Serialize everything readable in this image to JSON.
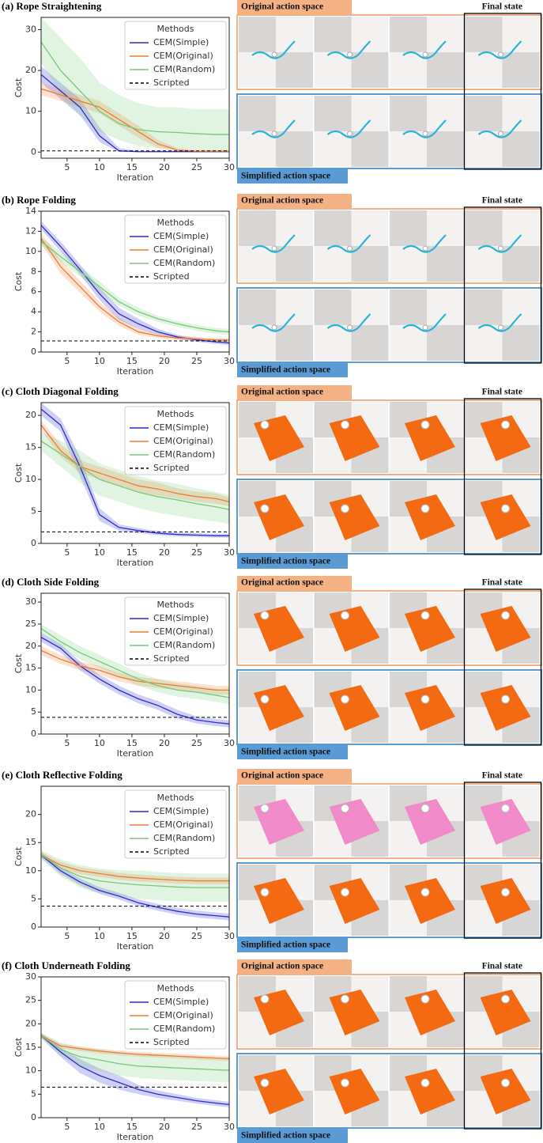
{
  "chart_data": [
    {
      "type": "line",
      "title": "(a) Rope Straightening",
      "x_label": "Iteration",
      "y_label": "Cost",
      "legend_title": "Methods",
      "legend": "upper right",
      "x": [
        1,
        4,
        7,
        10,
        13,
        16,
        19,
        22,
        25,
        28,
        30
      ],
      "xlim": [
        1,
        30
      ],
      "xticks": [
        5,
        10,
        15,
        20,
        25,
        30
      ],
      "ylim": [
        -1.5,
        33
      ],
      "yticks": [
        0,
        10,
        20,
        30
      ],
      "series": [
        {
          "name": "CEM(Simple)",
          "color": "#2b2bd0",
          "values": [
            19,
            15,
            11,
            4,
            0.3,
            0.1,
            0.1,
            0.1,
            0.1,
            0.1,
            0.1
          ],
          "lower": [
            17,
            13,
            9,
            2.5,
            0,
            0,
            0,
            0,
            0,
            0,
            0
          ],
          "upper": [
            21,
            17,
            13,
            6,
            1,
            0.3,
            0.3,
            0.3,
            0.3,
            0.3,
            0.3
          ]
        },
        {
          "name": "CEM(Original)",
          "color": "#f07b2f",
          "values": [
            15.5,
            14,
            12.5,
            11,
            8,
            5,
            2,
            0.5,
            0.2,
            0.2,
            0.2
          ],
          "lower": [
            14,
            12.5,
            11,
            9.5,
            6.5,
            3.5,
            1,
            0,
            0,
            0,
            0
          ],
          "upper": [
            17,
            15.5,
            14,
            12.5,
            9.5,
            6.5,
            3,
            1,
            0.5,
            0.5,
            0.5
          ]
        },
        {
          "name": "CEM(Random)",
          "color": "#78c878",
          "values": [
            27,
            20,
            15,
            10,
            7,
            5.5,
            5,
            4.8,
            4.5,
            4.3,
            4.3
          ],
          "lower": [
            22,
            14,
            9,
            5,
            3,
            1.5,
            1,
            0.8,
            0.5,
            0.3,
            0.3
          ],
          "upper": [
            33,
            28,
            23,
            17,
            14,
            12,
            11,
            11,
            10.5,
            10.5,
            10.5
          ]
        },
        {
          "name": "Scripted",
          "color": "#000000",
          "style": "dashed",
          "values": [
            0.3,
            0.3,
            0.3,
            0.3,
            0.3,
            0.3,
            0.3,
            0.3,
            0.3,
            0.3,
            0.3
          ]
        }
      ]
    },
    {
      "type": "line",
      "title": "(b) Rope Folding",
      "x_label": "Iteration",
      "y_label": "Cost",
      "legend_title": "Methods",
      "legend": "upper right",
      "x": [
        1,
        4,
        7,
        10,
        13,
        16,
        19,
        22,
        25,
        28,
        30
      ],
      "xlim": [
        1,
        30
      ],
      "xticks": [
        5,
        10,
        15,
        20,
        25,
        30
      ],
      "ylim": [
        0,
        14
      ],
      "yticks": [
        0,
        2,
        4,
        6,
        8,
        10,
        12,
        14
      ],
      "series": [
        {
          "name": "CEM(Simple)",
          "color": "#2b2bd0",
          "values": [
            12.6,
            10.5,
            8.2,
            5.8,
            3.8,
            2.8,
            2.0,
            1.5,
            1.2,
            1.0,
            0.9
          ],
          "lower": [
            12.2,
            10,
            7.7,
            5.2,
            3.2,
            2.3,
            1.7,
            1.3,
            1,
            0.8,
            0.7
          ],
          "upper": [
            13,
            11,
            8.7,
            6.4,
            4.4,
            3.3,
            2.3,
            1.7,
            1.4,
            1.2,
            1.1
          ]
        },
        {
          "name": "CEM(Original)",
          "color": "#f07b2f",
          "values": [
            11.3,
            8.5,
            6.5,
            4.5,
            3.0,
            2.0,
            1.6,
            1.4,
            1.3,
            1.2,
            1.2
          ],
          "lower": [
            10.8,
            7.8,
            5.9,
            4,
            2.6,
            1.7,
            1.4,
            1.2,
            1.1,
            1,
            1
          ],
          "upper": [
            11.8,
            9.2,
            7.1,
            5,
            3.4,
            2.3,
            1.8,
            1.6,
            1.5,
            1.4,
            1.4
          ]
        },
        {
          "name": "CEM(Random)",
          "color": "#78c878",
          "values": [
            11,
            9.5,
            8,
            6.5,
            5,
            4,
            3.3,
            2.8,
            2.4,
            2.1,
            2
          ],
          "lower": [
            10.6,
            9,
            7.5,
            6,
            4.6,
            3.6,
            3,
            2.5,
            2.1,
            1.8,
            1.7
          ],
          "upper": [
            11.4,
            10,
            8.5,
            7,
            5.4,
            4.4,
            3.6,
            3.1,
            2.7,
            2.4,
            2.3
          ]
        },
        {
          "name": "Scripted",
          "color": "#000000",
          "style": "dashed",
          "values": [
            1.1,
            1.1,
            1.1,
            1.1,
            1.1,
            1.1,
            1.1,
            1.1,
            1.1,
            1.1,
            1.1
          ]
        }
      ]
    },
    {
      "type": "line",
      "title": "(c) Cloth Diagonal Folding",
      "x_label": "Iteration",
      "y_label": "Cost",
      "legend_title": "Methods",
      "legend": "upper right",
      "x": [
        1,
        4,
        7,
        10,
        13,
        16,
        19,
        22,
        25,
        28,
        30
      ],
      "xlim": [
        1,
        30
      ],
      "xticks": [
        5,
        10,
        15,
        20,
        25,
        30
      ],
      "ylim": [
        0,
        22
      ],
      "yticks": [
        0,
        5,
        10,
        15,
        20
      ],
      "series": [
        {
          "name": "CEM(Simple)",
          "color": "#2b2bd0",
          "values": [
            21,
            18.5,
            12,
            4.5,
            2.5,
            2,
            1.6,
            1.4,
            1.3,
            1.2,
            1.2
          ],
          "lower": [
            20,
            17.5,
            10.5,
            3.5,
            2,
            1.6,
            1.3,
            1.1,
            1,
            0.9,
            0.9
          ],
          "upper": [
            22,
            19.5,
            13.5,
            5.5,
            3,
            2.4,
            1.9,
            1.7,
            1.6,
            1.5,
            1.5
          ]
        },
        {
          "name": "CEM(Original)",
          "color": "#f07b2f",
          "values": [
            18.5,
            14.5,
            12,
            11,
            10,
            9,
            8.5,
            7.8,
            7.3,
            7,
            6.5
          ],
          "lower": [
            17.8,
            13.5,
            11,
            10,
            9,
            8,
            7.5,
            7,
            6.5,
            6.2,
            5.8
          ],
          "upper": [
            19.2,
            15.5,
            13,
            12,
            11,
            10,
            9.5,
            8.6,
            8.1,
            7.8,
            7.2
          ]
        },
        {
          "name": "CEM(Random)",
          "color": "#78c878",
          "values": [
            16,
            14,
            12,
            10,
            9,
            8,
            7.3,
            6.8,
            6.2,
            5.7,
            5.3
          ],
          "lower": [
            14.5,
            12,
            9.5,
            7.5,
            6.5,
            5.5,
            4.8,
            4.3,
            3.8,
            3.4,
            3
          ],
          "upper": [
            17.5,
            16,
            14.5,
            12.5,
            11.5,
            10.5,
            9.8,
            9.3,
            8.6,
            8,
            7.6
          ]
        },
        {
          "name": "Scripted",
          "color": "#000000",
          "style": "dashed",
          "values": [
            1.8,
            1.8,
            1.8,
            1.8,
            1.8,
            1.8,
            1.8,
            1.8,
            1.8,
            1.8,
            1.8
          ]
        }
      ]
    },
    {
      "type": "line",
      "title": "(d) Cloth Side Folding",
      "x_label": "Iteration",
      "y_label": "Cost",
      "legend_title": "Methods",
      "legend": "upper right",
      "x": [
        1,
        4,
        7,
        10,
        13,
        16,
        19,
        22,
        25,
        28,
        30
      ],
      "xlim": [
        1,
        30
      ],
      "xticks": [
        5,
        10,
        15,
        20,
        25,
        30
      ],
      "ylim": [
        0,
        32
      ],
      "yticks": [
        0,
        5,
        10,
        15,
        20,
        25,
        30
      ],
      "series": [
        {
          "name": "CEM(Simple)",
          "color": "#2b2bd0",
          "values": [
            22,
            19.5,
            15.5,
            12.5,
            10,
            8,
            6.5,
            4.5,
            3.2,
            2.6,
            2.3
          ],
          "lower": [
            21,
            18.5,
            14.5,
            11.5,
            9,
            7,
            5.5,
            3.5,
            2.4,
            1.8,
            1.5
          ],
          "upper": [
            23,
            20.5,
            16.5,
            13.5,
            11,
            9,
            7.5,
            5.5,
            4,
            3.4,
            3.1
          ]
        },
        {
          "name": "CEM(Original)",
          "color": "#f07b2f",
          "values": [
            19,
            17,
            15.5,
            14.5,
            13,
            12,
            11.5,
            11,
            10.5,
            10,
            10
          ],
          "lower": [
            18,
            16,
            14.5,
            13.5,
            12,
            11,
            10.5,
            10,
            9.5,
            9,
            9
          ],
          "upper": [
            20,
            18,
            16.5,
            15.5,
            14,
            13,
            12.5,
            12,
            11.5,
            11,
            11
          ]
        },
        {
          "name": "CEM(Random)",
          "color": "#78c878",
          "values": [
            24,
            21,
            18.5,
            16.5,
            14.5,
            12.5,
            11,
            10,
            9.5,
            8.8,
            8.3
          ],
          "lower": [
            23,
            19.5,
            17,
            15,
            13,
            11,
            9.5,
            8.5,
            8,
            7.3,
            6.8
          ],
          "upper": [
            25,
            22.5,
            20,
            18,
            16,
            14,
            12.5,
            11.5,
            11,
            10.3,
            9.8
          ]
        },
        {
          "name": "Scripted",
          "color": "#000000",
          "style": "dashed",
          "values": [
            3.8,
            3.8,
            3.8,
            3.8,
            3.8,
            3.8,
            3.8,
            3.8,
            3.8,
            3.8,
            3.8
          ]
        }
      ]
    },
    {
      "type": "line",
      "title": "(e) Cloth Reflective Folding",
      "x_label": "Iteration",
      "y_label": "Cost",
      "legend_title": "Methods",
      "legend": "upper right",
      "x": [
        1,
        4,
        7,
        10,
        13,
        16,
        19,
        22,
        25,
        28,
        30
      ],
      "xlim": [
        1,
        30
      ],
      "xticks": [
        5,
        10,
        15,
        20,
        25,
        30
      ],
      "ylim": [
        0,
        25
      ],
      "yticks": [
        0,
        5,
        10,
        15,
        20
      ],
      "series": [
        {
          "name": "CEM(Simple)",
          "color": "#2b2bd0",
          "values": [
            12.8,
            10,
            8,
            6.5,
            5.5,
            4.3,
            3.5,
            2.8,
            2.3,
            2,
            1.8
          ],
          "lower": [
            12.3,
            9.4,
            7.4,
            5.9,
            4.9,
            3.7,
            2.9,
            2.2,
            1.7,
            1.4,
            1.2
          ],
          "upper": [
            13.3,
            10.6,
            8.6,
            7.1,
            6.1,
            4.9,
            4.1,
            3.4,
            2.9,
            2.6,
            2.4
          ]
        },
        {
          "name": "CEM(Original)",
          "color": "#f07b2f",
          "values": [
            12.8,
            11,
            10,
            9.5,
            9,
            8.7,
            8.5,
            8.3,
            8.2,
            8.2,
            8.2
          ],
          "lower": [
            12.3,
            10.4,
            9.4,
            8.9,
            8.4,
            8.1,
            7.9,
            7.7,
            7.6,
            7.6,
            7.6
          ],
          "upper": [
            13.3,
            11.6,
            10.6,
            10.1,
            9.6,
            9.3,
            9.1,
            8.9,
            8.8,
            8.8,
            8.8
          ]
        },
        {
          "name": "CEM(Random)",
          "color": "#78c878",
          "values": [
            12.8,
            10.5,
            9,
            8.2,
            7.8,
            7.5,
            7.3,
            7.1,
            7,
            7,
            7
          ],
          "lower": [
            12,
            9,
            7,
            6,
            5.5,
            5,
            4.8,
            4.6,
            4.5,
            4.5,
            4.5
          ],
          "upper": [
            13.6,
            12,
            11,
            10.4,
            10.1,
            10,
            9.8,
            9.6,
            9.5,
            9.5,
            9.5
          ]
        },
        {
          "name": "Scripted",
          "color": "#000000",
          "style": "dashed",
          "values": [
            3.7,
            3.7,
            3.7,
            3.7,
            3.7,
            3.7,
            3.7,
            3.7,
            3.7,
            3.7,
            3.7
          ]
        }
      ]
    },
    {
      "type": "line",
      "title": "(f) Cloth Underneath Folding",
      "x_label": "Iteration",
      "y_label": "Cost",
      "legend_title": "Methods",
      "legend": "upper right",
      "x": [
        1,
        4,
        7,
        10,
        13,
        16,
        19,
        22,
        25,
        28,
        30
      ],
      "xlim": [
        1,
        30
      ],
      "xticks": [
        5,
        10,
        15,
        20,
        25,
        30
      ],
      "ylim": [
        0,
        30
      ],
      "yticks": [
        0,
        5,
        10,
        15,
        20,
        25,
        30
      ],
      "series": [
        {
          "name": "CEM(Simple)",
          "color": "#2b2bd0",
          "values": [
            17.5,
            14,
            11,
            9,
            7.5,
            6,
            5,
            4.3,
            3.6,
            3.1,
            2.8
          ],
          "lower": [
            17,
            13,
            9.5,
            7.5,
            6,
            5,
            4.2,
            3.6,
            3,
            2.5,
            2.2
          ],
          "upper": [
            18,
            15,
            12.5,
            10.5,
            9,
            7,
            5.8,
            5,
            4.2,
            3.7,
            3.4
          ]
        },
        {
          "name": "CEM(Original)",
          "color": "#f07b2f",
          "values": [
            17.5,
            15.3,
            14.7,
            14.2,
            13.8,
            13.5,
            13.3,
            13.1,
            12.9,
            12.7,
            12.6
          ],
          "lower": [
            17,
            14.8,
            14.2,
            13.7,
            13.3,
            13,
            12.8,
            12.6,
            12.4,
            12.2,
            12.1
          ],
          "upper": [
            18,
            15.8,
            15.2,
            14.7,
            14.3,
            14,
            13.8,
            13.6,
            13.4,
            13.2,
            13.1
          ]
        },
        {
          "name": "CEM(Random)",
          "color": "#78c878",
          "values": [
            17.5,
            14.5,
            13,
            12.3,
            11.5,
            11,
            10.8,
            10.6,
            10.4,
            10.2,
            10.1
          ],
          "lower": [
            17,
            13,
            11,
            10,
            9,
            8.5,
            8.2,
            8,
            7.8,
            7.6,
            7.5
          ],
          "upper": [
            18,
            16,
            15,
            14.6,
            14,
            13.5,
            13.4,
            13.2,
            13,
            12.8,
            12.7
          ]
        },
        {
          "name": "Scripted",
          "color": "#000000",
          "style": "dashed",
          "values": [
            6.5,
            6.5,
            6.5,
            6.5,
            6.5,
            6.5,
            6.5,
            6.5,
            6.5,
            6.5,
            6.5
          ]
        }
      ]
    }
  ],
  "panel_labels": {
    "original": "Original action space",
    "simplified": "Simplified action space",
    "final": "Final state"
  }
}
